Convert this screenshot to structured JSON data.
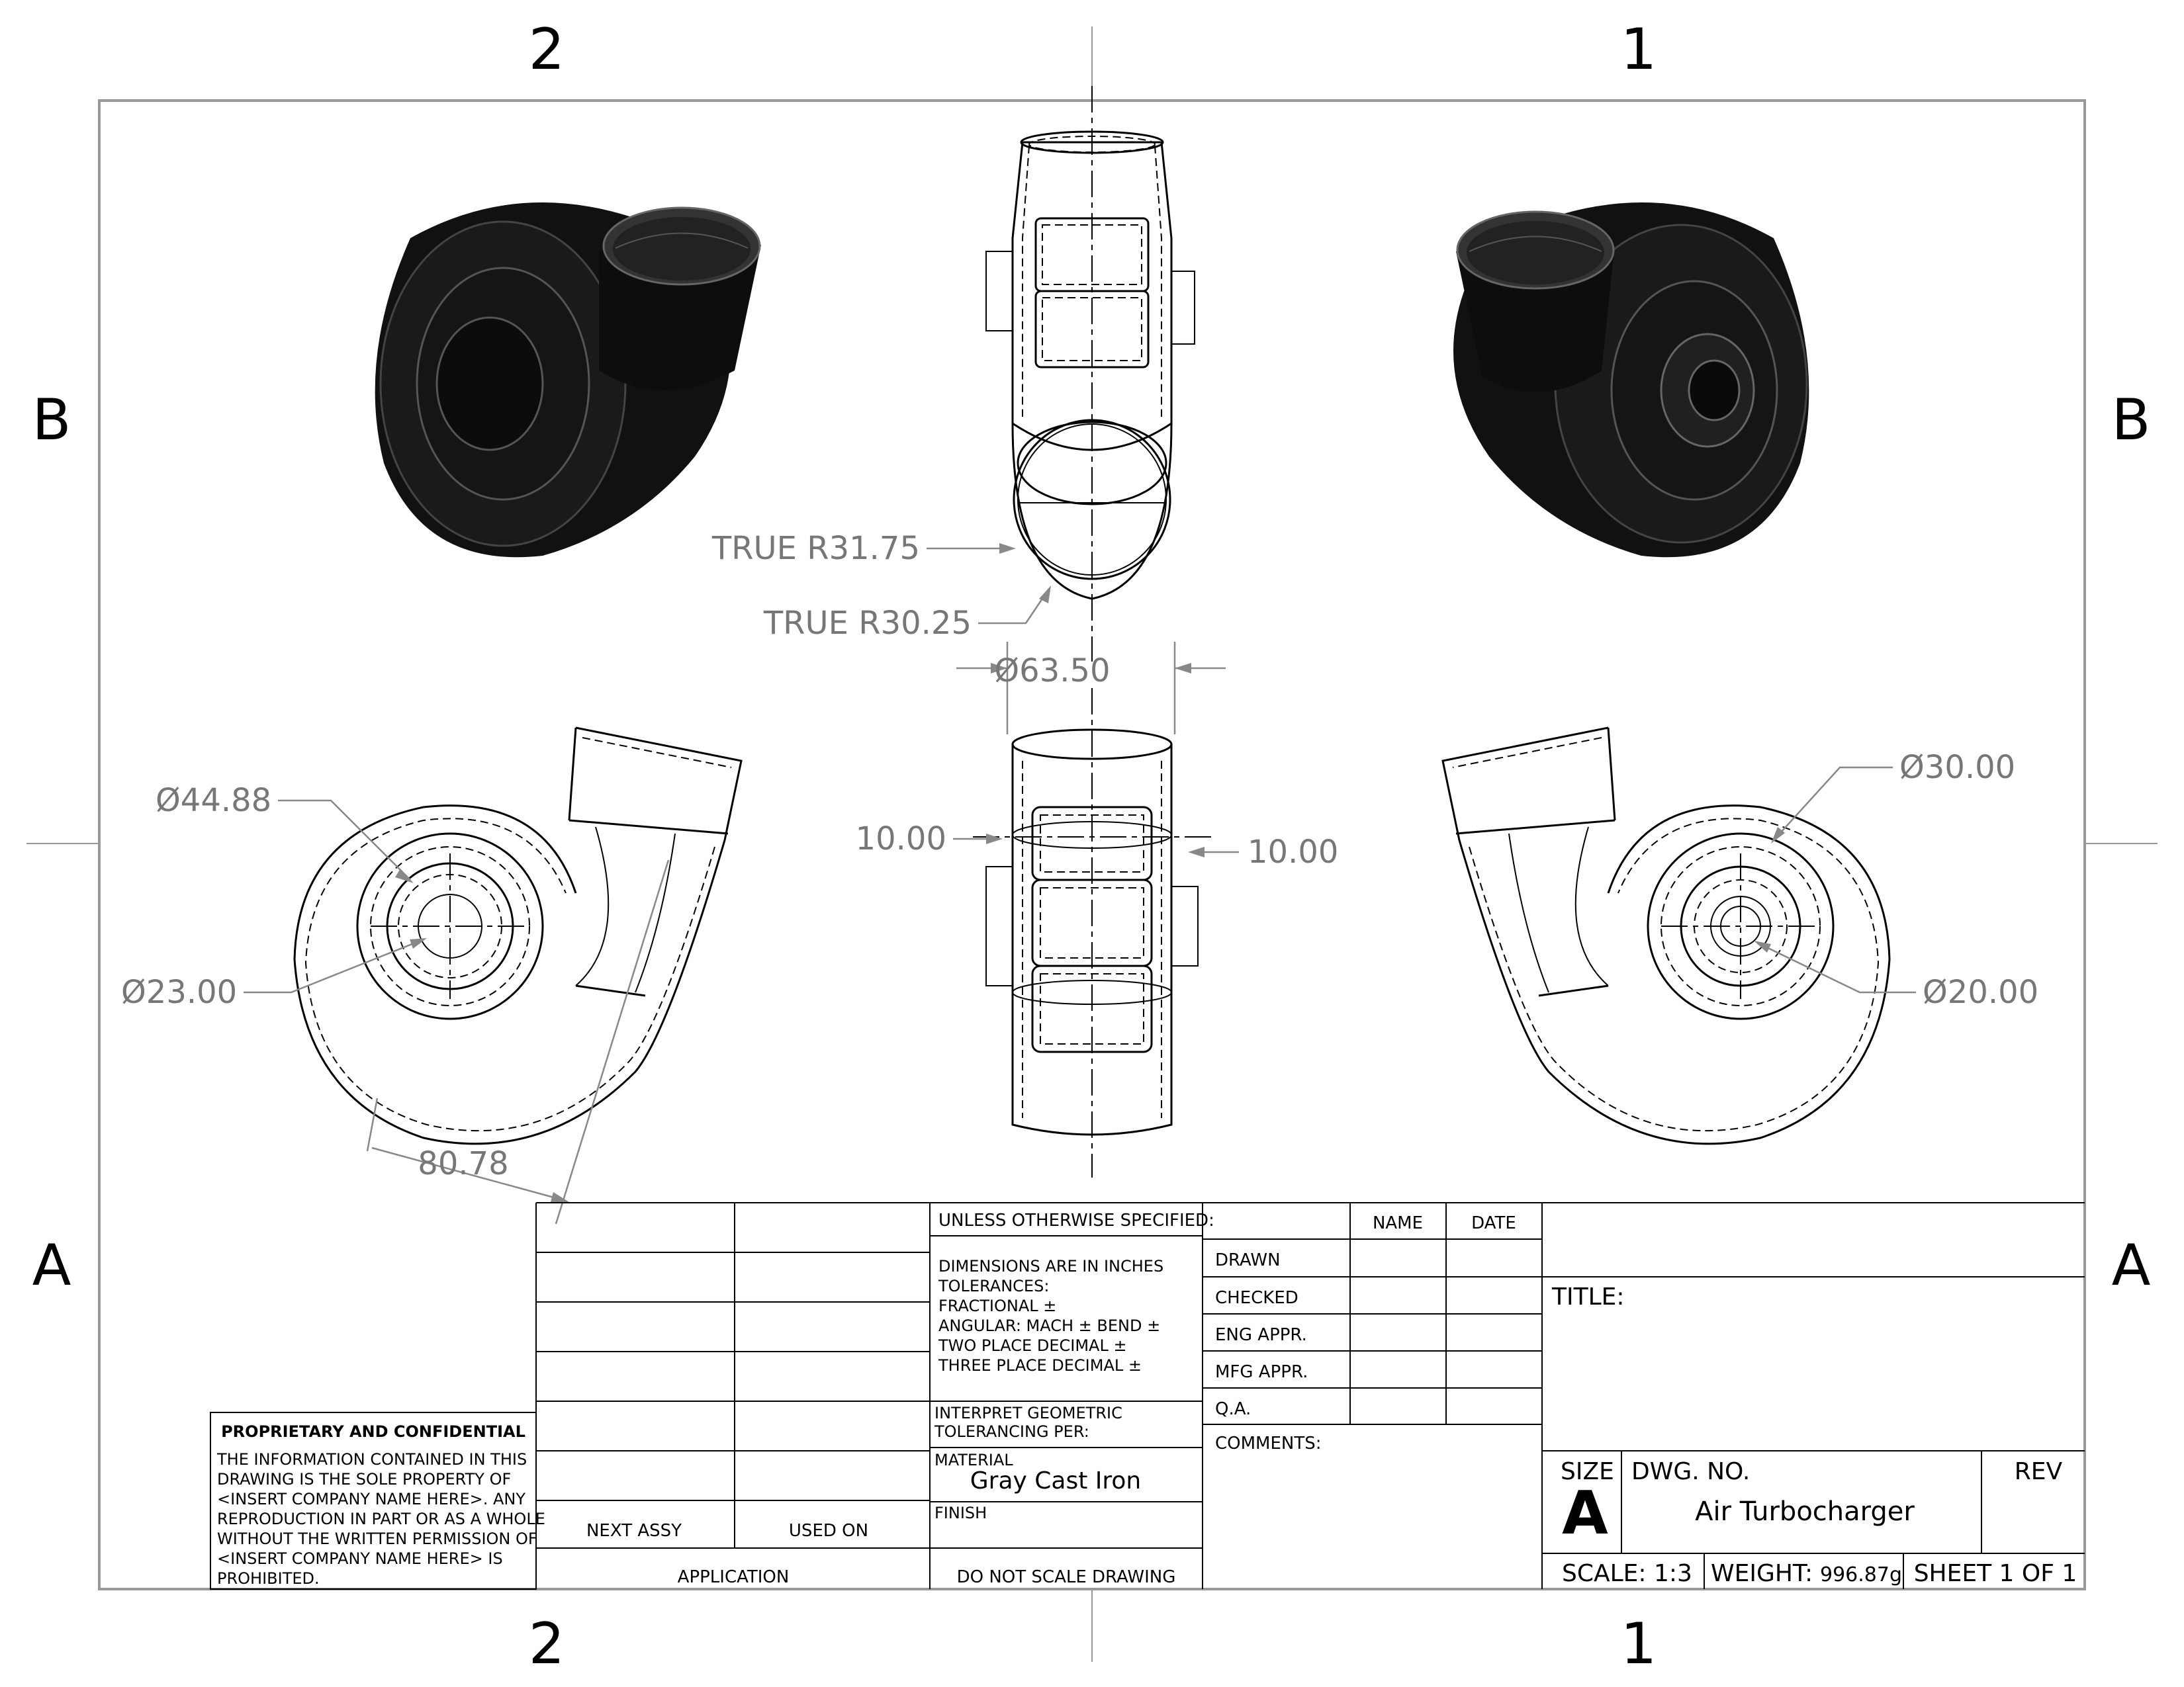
{
  "zones": {
    "top": [
      "2",
      "1"
    ],
    "bottom": [
      "2",
      "1"
    ],
    "left": [
      "B",
      "A"
    ],
    "right": [
      "B",
      "A"
    ]
  },
  "dimensions": {
    "true_r_outer": "TRUE R31.75",
    "true_r_inner": "TRUE R30.25",
    "dia_63": "Ø63.50",
    "left_wall": "10.00",
    "right_wall": "10.00",
    "dia_44": "Ø44.88",
    "dia_23": "Ø23.00",
    "len_80": "80.78",
    "dia_30": "Ø30.00",
    "dia_20": "Ø20.00"
  },
  "title_block": {
    "unless_specified": "UNLESS OTHERWISE SPECIFIED:",
    "tolerance_lines": [
      "DIMENSIONS ARE IN INCHES",
      "TOLERANCES:",
      "FRACTIONAL ±",
      "ANGULAR: MACH ±     BEND  ±",
      "TWO PLACE DECIMAL    ±",
      "THREE PLACE DECIMAL  ±"
    ],
    "interpret_lines": [
      "INTERPRET GEOMETRIC",
      "TOLERANCING PER:"
    ],
    "material_label": "MATERIAL",
    "material_value": "Gray Cast Iron",
    "finish_label": "FINISH",
    "do_not_scale": "DO NOT SCALE DRAWING",
    "next_assy": "NEXT ASSY",
    "used_on": "USED ON",
    "application": "APPLICATION",
    "name_header": "NAME",
    "date_header": "DATE",
    "rows": [
      "DRAWN",
      "CHECKED",
      "ENG APPR.",
      "MFG APPR.",
      "Q.A."
    ],
    "comments": "COMMENTS:",
    "title_label": "TITLE:",
    "size_label": "SIZE",
    "size_value": "A",
    "dwg_no_label": "DWG.  NO.",
    "dwg_no_value": "Air Turbocharger",
    "rev_label": "REV",
    "scale": "SCALE: 1:3",
    "weight_label": "WEIGHT:",
    "weight_value": "996.87g",
    "sheet": "SHEET 1 OF 1"
  },
  "proprietary": {
    "heading": "PROPRIETARY AND CONFIDENTIAL",
    "lines": [
      "THE INFORMATION CONTAINED IN THIS",
      "DRAWING IS THE SOLE PROPERTY OF",
      "<INSERT COMPANY NAME HERE>.  ANY",
      "REPRODUCTION IN PART OR AS A WHOLE",
      "WITHOUT THE WRITTEN PERMISSION OF",
      "<INSERT COMPANY NAME HERE> IS",
      "PROHIBITED."
    ]
  },
  "colors": {
    "frame": "#999999",
    "dimension_text": "#777777",
    "shaded_body": "#111111"
  }
}
